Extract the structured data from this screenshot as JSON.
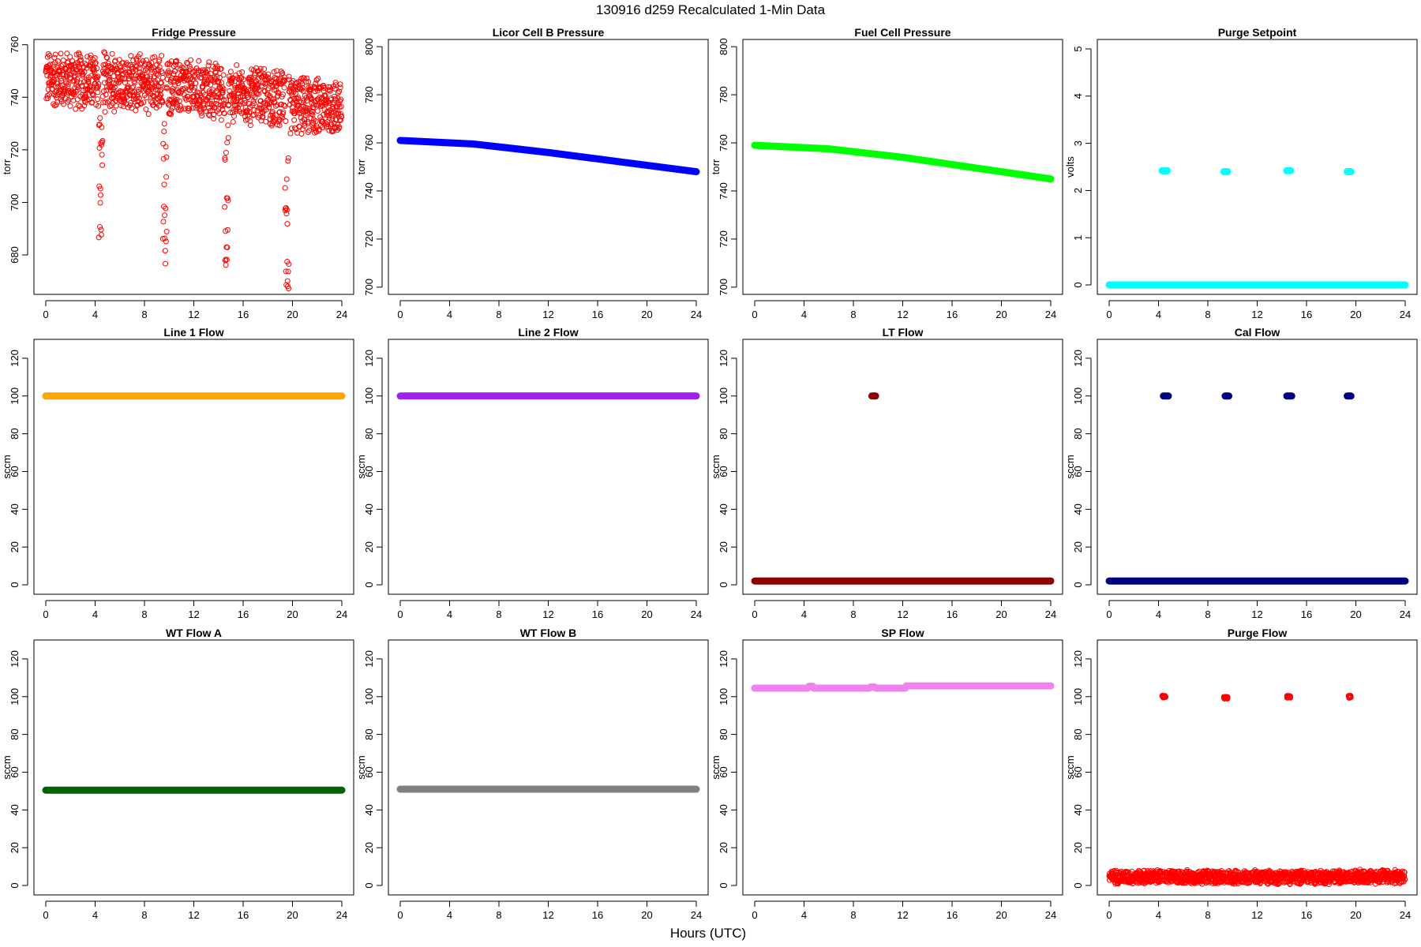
{
  "figure": {
    "title": "130916   d259   Recalculated 1-Min Data",
    "xlabel": "Hours (UTC)"
  },
  "chart_data": [
    {
      "type": "scatter",
      "title": "Fridge Pressure",
      "ylabel": "torr",
      "color": "#ff0000",
      "marker": "open-circle",
      "xlim": [
        -0.96,
        24.96
      ],
      "ylim": [
        665,
        762
      ],
      "xticks": [
        0,
        4,
        8,
        12,
        16,
        20,
        24
      ],
      "yticks": [
        680,
        700,
        720,
        740,
        760
      ],
      "points_model": "noisy baseline with purge dips",
      "baseline": [
        [
          0,
          747
        ],
        [
          4.3,
          746
        ],
        [
          4.6,
          746
        ],
        [
          9.5,
          745
        ],
        [
          9.8,
          744
        ],
        [
          14.5,
          742
        ],
        [
          14.8,
          741
        ],
        [
          19.4,
          740
        ],
        [
          19.8,
          737
        ],
        [
          24,
          736
        ]
      ],
      "noise_range": 12,
      "dips": [
        [
          4.3,
          4.6,
          682
        ],
        [
          9.5,
          9.8,
          675
        ],
        [
          14.5,
          14.8,
          675
        ],
        [
          19.4,
          19.7,
          667
        ]
      ]
    },
    {
      "type": "scatter",
      "title": "Licor Cell B Pressure",
      "ylabel": "torr",
      "color": "#0000ff",
      "marker": "filled",
      "xlim": [
        -0.96,
        24.96
      ],
      "ylim": [
        697,
        803
      ],
      "xticks": [
        0,
        4,
        8,
        12,
        16,
        20,
        24
      ],
      "yticks": [
        700,
        720,
        740,
        760,
        780,
        800
      ],
      "segments": [
        [
          0,
          761
        ],
        [
          6,
          759.5
        ],
        [
          12,
          756
        ],
        [
          18,
          752
        ],
        [
          24,
          748
        ]
      ]
    },
    {
      "type": "scatter",
      "title": "Fuel Cell Pressure",
      "ylabel": "torr",
      "color": "#00ff00",
      "marker": "filled",
      "xlim": [
        -0.96,
        24.96
      ],
      "ylim": [
        697,
        803
      ],
      "xticks": [
        0,
        4,
        8,
        12,
        16,
        20,
        24
      ],
      "yticks": [
        700,
        720,
        740,
        760,
        780,
        800
      ],
      "segments": [
        [
          0,
          759
        ],
        [
          6,
          757.5
        ],
        [
          12,
          754
        ],
        [
          18,
          749.5
        ],
        [
          24,
          745
        ]
      ]
    },
    {
      "type": "scatter",
      "title": "Purge Setpoint",
      "ylabel": "volts",
      "color": "#00ffff",
      "marker": "filled",
      "xlim": [
        -0.96,
        24.96
      ],
      "ylim": [
        -0.2,
        5.2
      ],
      "xticks": [
        0,
        4,
        8,
        12,
        16,
        20,
        24
      ],
      "yticks": [
        0,
        1,
        2,
        3,
        4,
        5
      ],
      "segments": [
        [
          0,
          0
        ],
        [
          24,
          0
        ]
      ],
      "clusters": [
        [
          4.3,
          4.7,
          2.42
        ],
        [
          9.3,
          9.6,
          2.4
        ],
        [
          14.4,
          14.7,
          2.42
        ],
        [
          19.3,
          19.6,
          2.4
        ]
      ]
    },
    {
      "type": "scatter",
      "title": "Line 1 Flow",
      "ylabel": "sccm",
      "color": "#ffa500",
      "marker": "filled",
      "xlim": [
        -0.96,
        24.96
      ],
      "ylim": [
        -5,
        130
      ],
      "xticks": [
        0,
        4,
        8,
        12,
        16,
        20,
        24
      ],
      "yticks": [
        0,
        20,
        40,
        60,
        80,
        100,
        120
      ],
      "segments": [
        [
          0,
          100
        ],
        [
          24,
          100
        ]
      ]
    },
    {
      "type": "scatter",
      "title": "Line 2 Flow",
      "ylabel": "sccm",
      "color": "#a020f0",
      "marker": "filled",
      "xlim": [
        -0.96,
        24.96
      ],
      "ylim": [
        -5,
        130
      ],
      "xticks": [
        0,
        4,
        8,
        12,
        16,
        20,
        24
      ],
      "yticks": [
        0,
        20,
        40,
        60,
        80,
        100,
        120
      ],
      "segments": [
        [
          0,
          100
        ],
        [
          24,
          100
        ]
      ]
    },
    {
      "type": "scatter",
      "title": "LT Flow",
      "ylabel": "sccm",
      "color": "#8b0000",
      "marker": "filled",
      "xlim": [
        -0.96,
        24.96
      ],
      "ylim": [
        -5,
        130
      ],
      "xticks": [
        0,
        4,
        8,
        12,
        16,
        20,
        24
      ],
      "yticks": [
        0,
        20,
        40,
        60,
        80,
        100,
        120
      ],
      "segments": [
        [
          0,
          2
        ],
        [
          24,
          2
        ]
      ],
      "clusters": [
        [
          9.5,
          9.8,
          100
        ]
      ]
    },
    {
      "type": "scatter",
      "title": "Cal Flow",
      "ylabel": "sccm",
      "color": "#000080",
      "marker": "filled",
      "xlim": [
        -0.96,
        24.96
      ],
      "ylim": [
        -5,
        130
      ],
      "xticks": [
        0,
        4,
        8,
        12,
        16,
        20,
        24
      ],
      "yticks": [
        0,
        20,
        40,
        60,
        80,
        100,
        120
      ],
      "segments": [
        [
          0,
          2
        ],
        [
          24,
          2
        ]
      ],
      "clusters": [
        [
          4.4,
          4.8,
          100
        ],
        [
          9.4,
          9.7,
          100
        ],
        [
          14.4,
          14.8,
          100
        ],
        [
          19.3,
          19.6,
          100
        ]
      ]
    },
    {
      "type": "scatter",
      "title": "WT Flow A",
      "ylabel": "sccm",
      "color": "#006400",
      "marker": "filled",
      "xlim": [
        -0.96,
        24.96
      ],
      "ylim": [
        -5,
        130
      ],
      "xticks": [
        0,
        4,
        8,
        12,
        16,
        20,
        24
      ],
      "yticks": [
        0,
        20,
        40,
        60,
        80,
        100,
        120
      ],
      "segments": [
        [
          0,
          50.5
        ],
        [
          24,
          50.5
        ]
      ]
    },
    {
      "type": "scatter",
      "title": "WT Flow B",
      "ylabel": "sccm",
      "color": "#808080",
      "marker": "filled",
      "xlim": [
        -0.96,
        24.96
      ],
      "ylim": [
        -5,
        130
      ],
      "xticks": [
        0,
        4,
        8,
        12,
        16,
        20,
        24
      ],
      "yticks": [
        0,
        20,
        40,
        60,
        80,
        100,
        120
      ],
      "segments": [
        [
          0,
          51
        ],
        [
          24,
          51
        ]
      ]
    },
    {
      "type": "scatter",
      "title": "SP Flow",
      "ylabel": "sccm",
      "color": "#ee82ee",
      "marker": "filled",
      "xlim": [
        -0.96,
        24.96
      ],
      "ylim": [
        -5,
        130
      ],
      "xticks": [
        0,
        4,
        8,
        12,
        16,
        20,
        24
      ],
      "yticks": [
        0,
        20,
        40,
        60,
        80,
        100,
        120
      ],
      "segments": [
        [
          0,
          104.5
        ],
        [
          4.3,
          104.5
        ],
        [
          4.4,
          105.5
        ],
        [
          4.7,
          105.5
        ],
        [
          4.8,
          104.5
        ],
        [
          9.3,
          104.5
        ],
        [
          9.4,
          105.2
        ],
        [
          9.7,
          105.2
        ],
        [
          9.8,
          104.5
        ],
        [
          12.2,
          104.5
        ],
        [
          12.3,
          105.7
        ],
        [
          24,
          105.7
        ]
      ]
    },
    {
      "type": "scatter",
      "title": "Purge Flow",
      "ylabel": "sccm",
      "color": "#ff0000",
      "marker": "open-circle",
      "xlim": [
        -0.96,
        24.96
      ],
      "ylim": [
        -5,
        130
      ],
      "xticks": [
        0,
        4,
        8,
        12,
        16,
        20,
        24
      ],
      "yticks": [
        0,
        20,
        40,
        60,
        80,
        100,
        120
      ],
      "points_model": "noisy baseline",
      "baseline": [
        [
          0,
          4.5
        ],
        [
          24,
          4.5
        ]
      ],
      "noise_range": 4,
      "clusters": [
        [
          4.3,
          4.6,
          100
        ],
        [
          9.3,
          9.6,
          99.5
        ],
        [
          14.4,
          14.7,
          100
        ],
        [
          19.4,
          19.6,
          100
        ]
      ]
    }
  ]
}
